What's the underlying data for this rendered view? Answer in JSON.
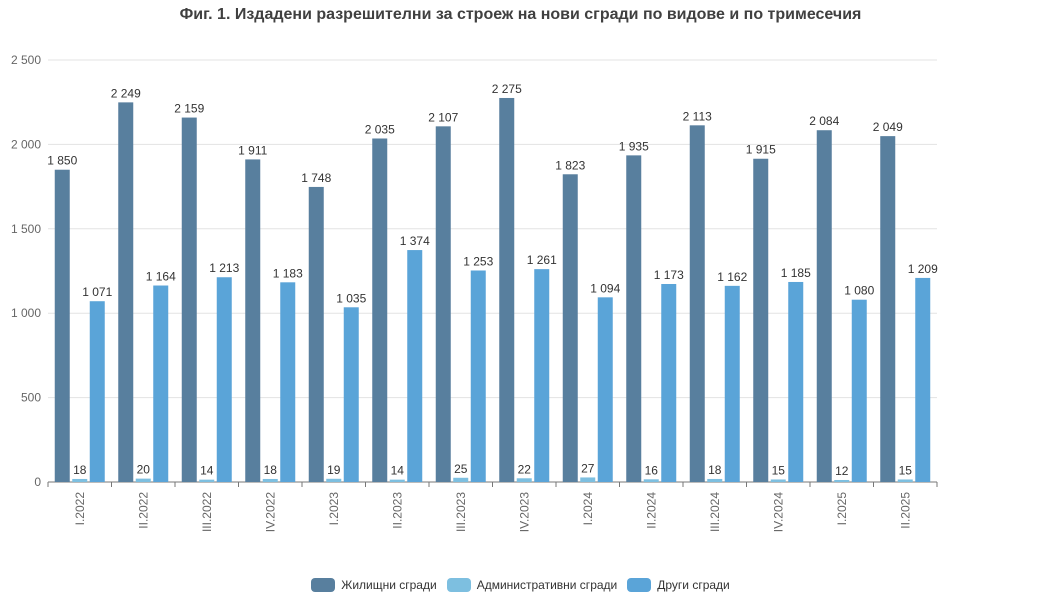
{
  "title": "Фиг. 1. Издадени разрешителни за строеж на нови сгради по видове и по тримесечия",
  "chart_data": {
    "type": "bar",
    "categories": [
      "I.2022",
      "II.2022",
      "III.2022",
      "IV.2022",
      "I.2023",
      "II.2023",
      "III.2023",
      "IV.2023",
      "I.2024",
      "II.2024",
      "III.2024",
      "IV.2024",
      "I.2025",
      "II.2025"
    ],
    "series": [
      {
        "name": "Жилищни сгради",
        "color": "#587f9e",
        "values": [
          1850,
          2249,
          2159,
          1911,
          1748,
          2035,
          2107,
          2275,
          1823,
          1935,
          2113,
          1915,
          2084,
          2049
        ],
        "labels": [
          "1 850",
          "2 249",
          "2 159",
          "1 911",
          "1 748",
          "2 035",
          "2 107",
          "2 275",
          "1 823",
          "1 935",
          "2 113",
          "1 915",
          "2 084",
          "2 049"
        ]
      },
      {
        "name": "Административни сгради",
        "color": "#7dbfe0",
        "values": [
          18,
          20,
          14,
          18,
          19,
          14,
          25,
          22,
          27,
          16,
          18,
          15,
          12,
          15
        ],
        "labels": [
          "18",
          "20",
          "14",
          "18",
          "19",
          "14",
          "25",
          "22",
          "27",
          "16",
          "18",
          "15",
          "12",
          "15"
        ]
      },
      {
        "name": "Други сгради",
        "color": "#5aa4d8",
        "values": [
          1071,
          1164,
          1213,
          1183,
          1035,
          1374,
          1253,
          1261,
          1094,
          1173,
          1162,
          1185,
          1080,
          1209
        ],
        "labels": [
          "1 071",
          "1 164",
          "1 213",
          "1 183",
          "1 035",
          "1 374",
          "1 253",
          "1 261",
          "1 094",
          "1 173",
          "1 162",
          "1 185",
          "1 080",
          "1 209"
        ]
      }
    ],
    "ylim": [
      0,
      2500
    ],
    "yticks": [
      0,
      500,
      1000,
      1500,
      2000,
      2500
    ],
    "ytick_labels": [
      "0",
      "500",
      "1 000",
      "1 500",
      "2 000",
      "2 500"
    ],
    "grid": true,
    "legend_position": "bottom-center"
  }
}
